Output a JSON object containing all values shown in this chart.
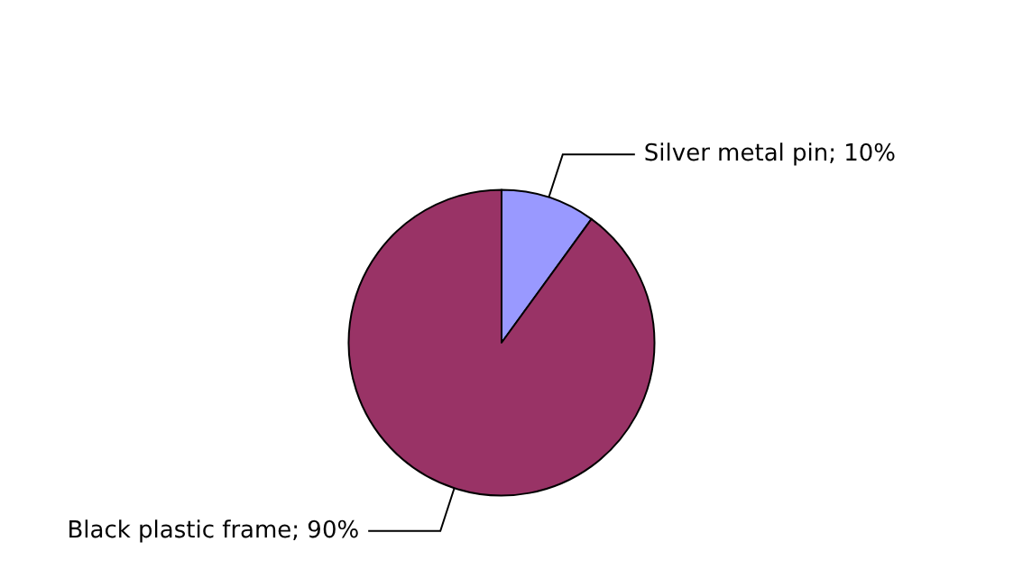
{
  "chart_data": {
    "type": "pie",
    "categories": [
      "Silver metal pin",
      "Black plastic frame"
    ],
    "values": [
      10,
      90
    ],
    "colors": [
      "#9999ff",
      "#993366"
    ],
    "value_labels": [
      "; 10%",
      "; 90%"
    ],
    "legend": false
  }
}
